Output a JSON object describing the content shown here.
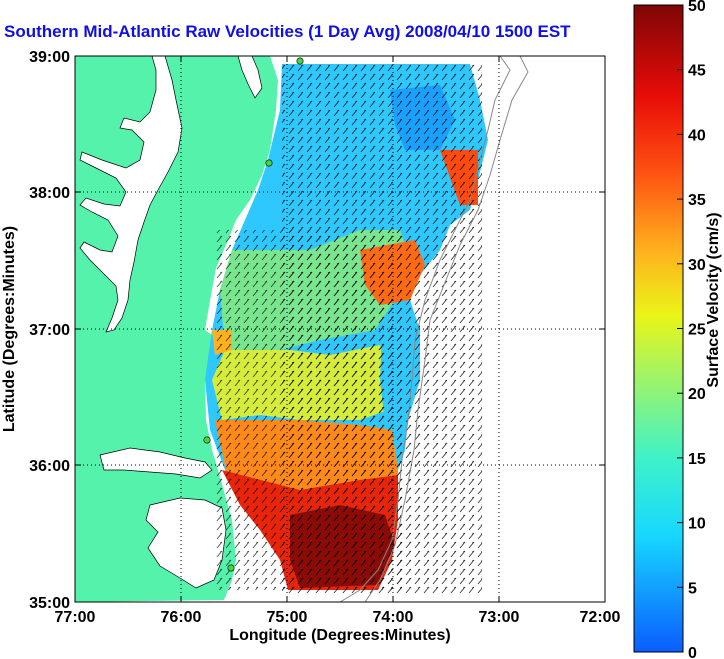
{
  "title": "Southern Mid-Atlantic Raw Velocities (1 Day Avg) 2008/04/10 1500 EST",
  "x_axis": {
    "label": "Longitude (Degrees:Minutes)",
    "ticks": [
      "77:00",
      "76:00",
      "75:00",
      "74:00",
      "73:00",
      "72:00"
    ]
  },
  "y_axis": {
    "label": "Latitude (Degrees:Minutes)",
    "ticks": [
      "39:00",
      "38:00",
      "37:00",
      "36:00",
      "35:00"
    ]
  },
  "colorbar": {
    "label": "Surface Velocity (cm/s)",
    "ticks": [
      "50",
      "45",
      "40",
      "35",
      "30",
      "25",
      "20",
      "15",
      "10",
      "5",
      "0"
    ],
    "min": 0,
    "max": 50
  },
  "colors": {
    "land": "#55f2ac",
    "water": "#ffffff",
    "title": "#1010e6"
  }
}
